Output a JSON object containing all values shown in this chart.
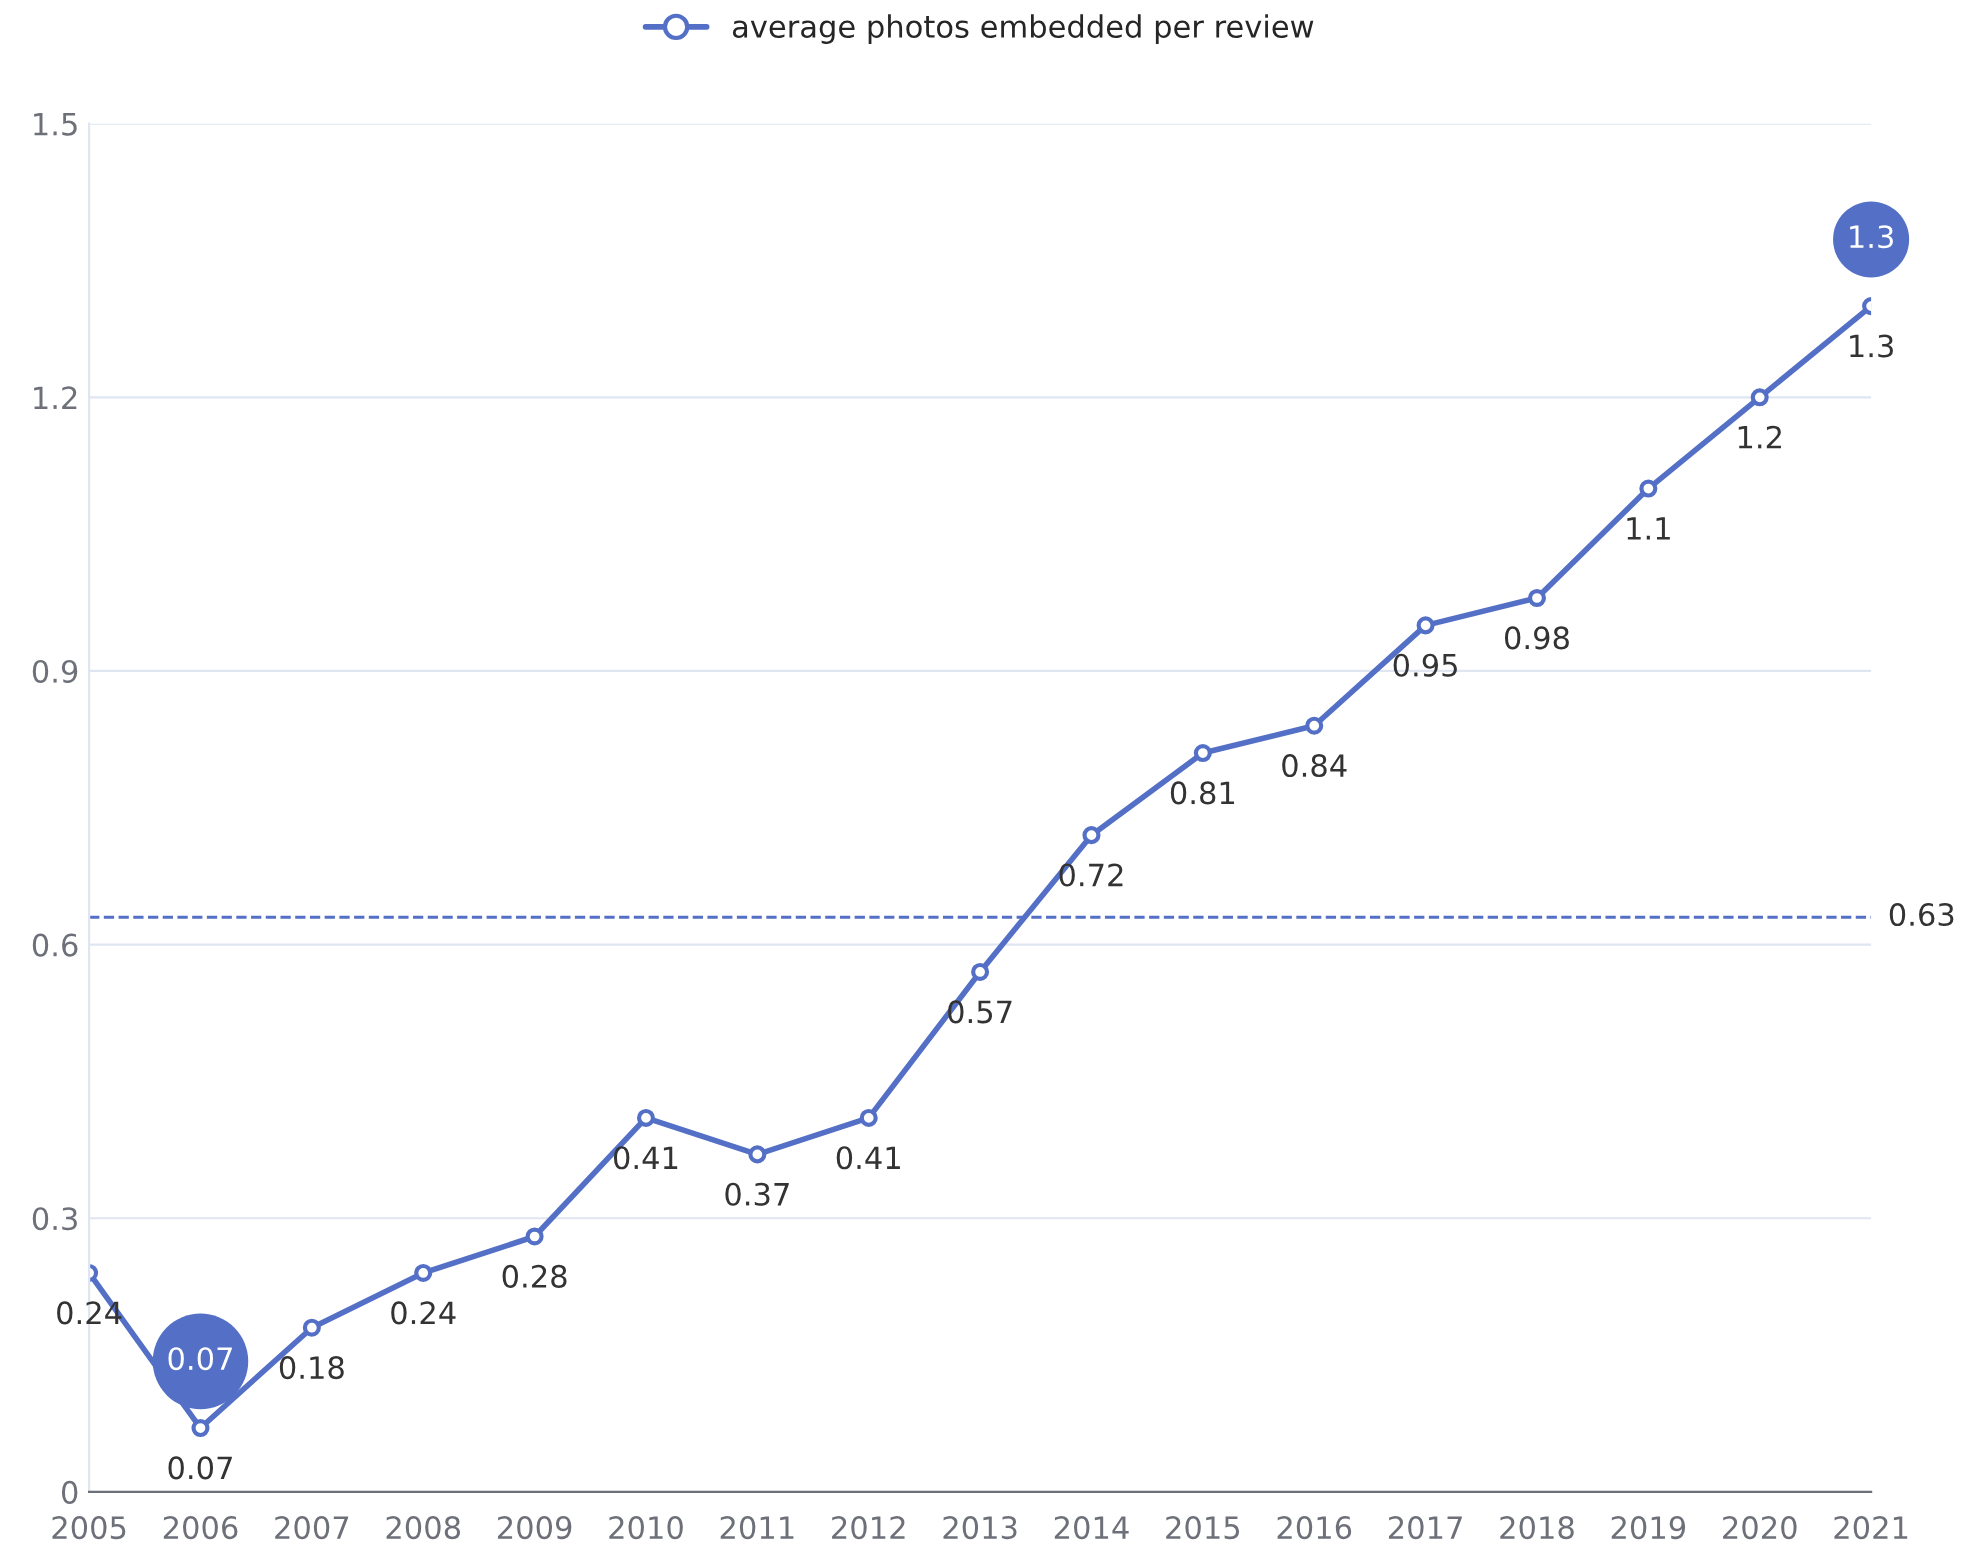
{
  "chart_data": {
    "type": "line",
    "categories": [
      "2005",
      "2006",
      "2007",
      "2008",
      "2009",
      "2010",
      "2011",
      "2012",
      "2013",
      "2014",
      "2015",
      "2016",
      "2017",
      "2018",
      "2019",
      "2020",
      "2021"
    ],
    "series": [
      {
        "name": "average photos embedded per review",
        "color": "#5470c6",
        "values": [
          0.24,
          0.07,
          0.18,
          0.24,
          0.28,
          0.41,
          0.37,
          0.41,
          0.57,
          0.72,
          0.81,
          0.84,
          0.95,
          0.98,
          1.1,
          1.2,
          1.3
        ]
      }
    ],
    "ylim": [
      0,
      1.5
    ],
    "yticks": [
      0,
      0.3,
      0.6,
      0.9,
      1.2,
      1.5
    ],
    "grid": "y",
    "legend": "top",
    "marker": "circle",
    "line_style": "solid",
    "data_labels": true,
    "annotations": [
      {
        "text": "1.3",
        "x": "2021",
        "y": 1.3
      },
      {
        "text": "0.07",
        "x": "2006",
        "y": 0.07
      }
    ],
    "ref_lines": [
      {
        "axis": "y",
        "value": 0.63,
        "label": "0.63",
        "color": "#5470c6",
        "line_style": "dashed"
      }
    ]
  }
}
